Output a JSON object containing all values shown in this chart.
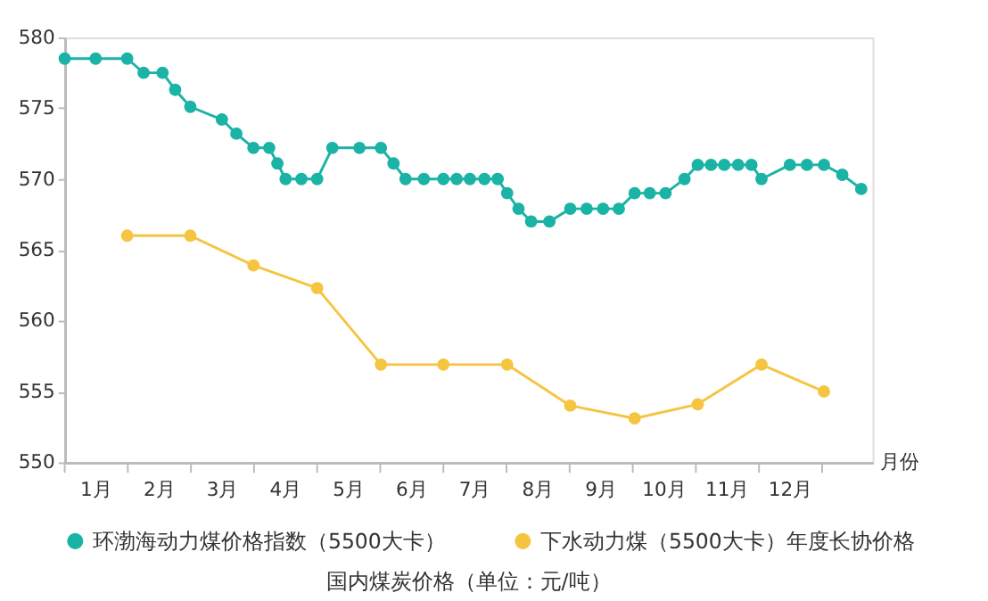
{
  "chart_data": {
    "type": "line",
    "xlabel": "月份",
    "annotations": [
      "国内煤炭价格（单位：元/吨）"
    ],
    "xlim": [
      0,
      12.8
    ],
    "xticks": [
      {
        "value": 0,
        "label": null
      },
      {
        "value": 0.5,
        "label": "1月"
      },
      {
        "value": 1,
        "label": null
      },
      {
        "value": 1.5,
        "label": "2月"
      },
      {
        "value": 2,
        "label": null
      },
      {
        "value": 2.5,
        "label": "3月"
      },
      {
        "value": 3,
        "label": null
      },
      {
        "value": 3.5,
        "label": "4月"
      },
      {
        "value": 4,
        "label": null
      },
      {
        "value": 4.5,
        "label": "5月"
      },
      {
        "value": 5,
        "label": null
      },
      {
        "value": 5.5,
        "label": "6月"
      },
      {
        "value": 6,
        "label": null
      },
      {
        "value": 6.5,
        "label": "7月"
      },
      {
        "value": 7,
        "label": null
      },
      {
        "value": 7.5,
        "label": "8月"
      },
      {
        "value": 8,
        "label": null
      },
      {
        "value": 8.5,
        "label": "9月"
      },
      {
        "value": 9,
        "label": null
      },
      {
        "value": 9.5,
        "label": "10月"
      },
      {
        "value": 10,
        "label": null
      },
      {
        "value": 10.5,
        "label": "11月"
      },
      {
        "value": 11,
        "label": null
      },
      {
        "value": 11.5,
        "label": "12月"
      },
      {
        "value": 12,
        "label": null
      }
    ],
    "ylim": [
      550,
      580
    ],
    "yticks": [
      550,
      555,
      560,
      565,
      570,
      575,
      580
    ],
    "grid": false,
    "legend": "bottom",
    "marker": "circle",
    "line_style": "solid",
    "series": [
      {
        "name": "环渤海动力煤价格指数（5500大卡）",
        "color": "#1ab3a6",
        "x": [
          0,
          0.49,
          0.99,
          1.25,
          1.55,
          1.75,
          1.99,
          2.49,
          2.72,
          2.99,
          3.24,
          3.37,
          3.5,
          3.75,
          4.0,
          4.24,
          4.67,
          5.01,
          5.21,
          5.4,
          5.69,
          6.0,
          6.21,
          6.42,
          6.65,
          6.86,
          7.01,
          7.19,
          7.39,
          7.68,
          8.01,
          8.27,
          8.53,
          8.78,
          9.03,
          9.27,
          9.52,
          9.82,
          10.03,
          10.24,
          10.45,
          10.67,
          10.88,
          11.04,
          11.49,
          11.76,
          12.03,
          12.32,
          12.62
        ],
        "values": [
          578.5,
          578.5,
          578.5,
          577.5,
          577.5,
          576.3,
          575.1,
          574.2,
          573.2,
          572.2,
          572.2,
          571.1,
          570.0,
          570.0,
          570.0,
          572.2,
          572.2,
          572.2,
          571.1,
          570.0,
          570.0,
          570.0,
          570.0,
          570.0,
          570.0,
          570.0,
          569.0,
          567.9,
          567.0,
          567.0,
          567.9,
          567.9,
          567.9,
          567.9,
          569.0,
          569.0,
          569.0,
          570.0,
          571.0,
          571.0,
          571.0,
          571.0,
          571.0,
          570.0,
          571.0,
          571.0,
          571.0,
          570.3,
          569.3
        ]
      },
      {
        "name": "下水动力煤（5500大卡）年度长协价格",
        "color": "#f5c542",
        "x": [
          0.99,
          1.99,
          2.99,
          4.0,
          5.01,
          6.0,
          7.01,
          8.01,
          9.03,
          10.03,
          11.04,
          12.03
        ],
        "values": [
          566.0,
          566.0,
          563.9,
          562.3,
          556.9,
          556.9,
          556.9,
          554.0,
          553.1,
          554.1,
          556.9,
          555.0
        ]
      }
    ]
  }
}
